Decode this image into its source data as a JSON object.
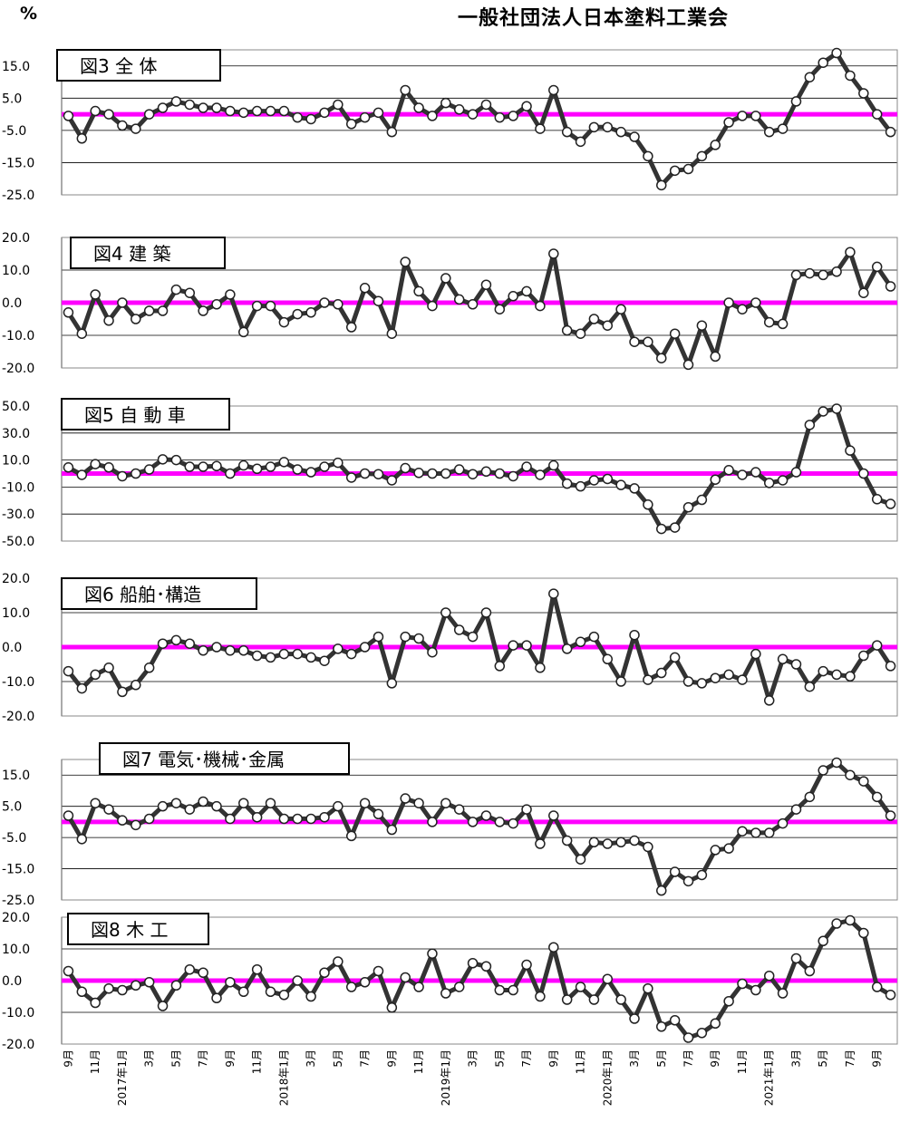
{
  "header": {
    "unit": "%",
    "org": "一般社団法人日本塗料工業会"
  },
  "x_labels": [
    "9月",
    "",
    "11月",
    "",
    "2017年1月",
    "",
    "3月",
    "",
    "5月",
    "",
    "7月",
    "",
    "9月",
    "",
    "11月",
    "",
    "2018年1月",
    "",
    "3月",
    "",
    "5月",
    "",
    "7月",
    "",
    "9月",
    "",
    "11月",
    "",
    "2019年1月",
    "",
    "3月",
    "",
    "5月",
    "",
    "7月",
    "",
    "9月",
    "",
    "11月",
    "",
    "2020年1月",
    "",
    "3月",
    "",
    "5月",
    "",
    "7月",
    "",
    "9月",
    "",
    "11月",
    "",
    "2021年1月",
    "",
    "3月",
    "",
    "5月",
    "",
    "7月",
    "",
    "9月",
    ""
  ],
  "chart_data": [
    {
      "type": "line",
      "title": "図3 全 体",
      "ylim": [
        -25,
        20
      ],
      "yticks": [
        "15.0",
        "5.0",
        "-5.0",
        "-15.0",
        "-25.0"
      ],
      "ytick_values": [
        15,
        5,
        -5,
        -15,
        -25
      ],
      "values": [
        -0.5,
        -7.5,
        1,
        0,
        -3.5,
        -4.5,
        0,
        2,
        4,
        3,
        2,
        2,
        1,
        0.5,
        1,
        1,
        1,
        -1,
        -1.5,
        0.5,
        3,
        -3,
        -1,
        0.5,
        -5.5,
        7.5,
        2,
        -0.5,
        3.5,
        1.5,
        0,
        3,
        -1,
        -0.5,
        2.5,
        -4.5,
        7.5,
        -5.5,
        -8.5,
        -4,
        -4,
        -5.5,
        -7,
        -13,
        -22,
        -17.5,
        -17,
        -13,
        -9.5,
        -2.5,
        -0.5,
        -0.5,
        -5.5,
        -4.5,
        4,
        11.5,
        16,
        19,
        12,
        6.5,
        0,
        -5.5
      ]
    },
    {
      "type": "line",
      "title": "図4 建 築",
      "ylim": [
        -20,
        20
      ],
      "yticks": [
        "20.0",
        "10.0",
        "0.0",
        "-10.0",
        "-20.0"
      ],
      "ytick_values": [
        20,
        10,
        0,
        -10,
        -20
      ],
      "values": [
        -3,
        -9.5,
        2.5,
        -5.5,
        0,
        -5,
        -2.5,
        -2.5,
        4,
        3,
        -2.5,
        -0.5,
        2.5,
        -9,
        -1,
        -1,
        -6,
        -3.5,
        -3,
        0,
        -0.5,
        -7.5,
        4.5,
        0.5,
        -9.5,
        12.5,
        3.5,
        -1,
        7.5,
        1,
        -0.5,
        5.5,
        -2,
        2,
        3.5,
        -1,
        15,
        -8.5,
        -9.5,
        -5,
        -7,
        -2,
        -12,
        -12,
        -17,
        -9.5,
        -19,
        -7,
        -16.5,
        0,
        -2,
        0,
        -6,
        -6.5,
        8.5,
        9,
        8.5,
        9.5,
        15.5,
        3,
        11,
        5
      ]
    },
    {
      "type": "line",
      "title": "図5 自 動 車",
      "ylim": [
        -50,
        50
      ],
      "yticks": [
        "50.0",
        "30.0",
        "10.0",
        "-10.0",
        "-30.0",
        "-50.0"
      ],
      "ytick_values": [
        50,
        30,
        10,
        -10,
        -30,
        -50
      ],
      "values": [
        4.5,
        -1,
        7,
        4.5,
        -2,
        0,
        3,
        10.5,
        10,
        5,
        5,
        5.5,
        0,
        6,
        3.5,
        5,
        8.5,
        3,
        1,
        5,
        8,
        -3,
        0,
        -0.5,
        -5,
        4,
        0.5,
        0,
        0,
        3,
        -0.5,
        1.5,
        0,
        -2,
        5,
        -1,
        6,
        -7.5,
        -9.5,
        -5,
        -4,
        -8.5,
        -11,
        -23,
        -41,
        -40,
        -25,
        -19.5,
        -4.5,
        2.5,
        -1,
        1,
        -7,
        -5,
        1,
        36,
        46,
        48,
        17,
        0,
        -19,
        -22.5
      ]
    },
    {
      "type": "line",
      "title": "図6 船舶･構造",
      "ylim": [
        -20,
        20
      ],
      "yticks": [
        "20.0",
        "10.0",
        "0.0",
        "-10.0",
        "-20.0"
      ],
      "ytick_values": [
        20,
        10,
        0,
        -10,
        -20
      ],
      "values": [
        -7,
        -12,
        -8,
        -6,
        -13,
        -11,
        -6,
        1,
        2,
        1,
        -1,
        0,
        -1,
        -1,
        -2.5,
        -3,
        -2,
        -2,
        -3,
        -4,
        -0.5,
        -2,
        0,
        3,
        -10.5,
        3,
        2.5,
        -1.5,
        10,
        5,
        3,
        10,
        -5.5,
        0.5,
        0.5,
        -6,
        15.5,
        -0.5,
        1.5,
        3,
        -3.5,
        -10,
        3.5,
        -9.5,
        -7.5,
        -3,
        -10,
        -10.5,
        -9,
        -8,
        -9.5,
        -2,
        -15.5,
        -3.5,
        -5,
        -11.5,
        -7,
        -8,
        -8.5,
        -2.5,
        0.5,
        -5.5
      ]
    },
    {
      "type": "line",
      "title": "図7 電気･機械･金属",
      "ylim": [
        -25,
        20
      ],
      "yticks": [
        "15.0",
        "5.0",
        "-5.0",
        "-15.0",
        "-25.0"
      ],
      "ytick_values": [
        15,
        5,
        -5,
        -15,
        -25
      ],
      "values": [
        2,
        -5.5,
        6,
        4,
        0.5,
        -1,
        1,
        5,
        6,
        4,
        6.5,
        5,
        1,
        6,
        1.5,
        6,
        1,
        1,
        1,
        1.5,
        5,
        -4.5,
        6,
        2.5,
        -2.5,
        7.5,
        6,
        0,
        6,
        4,
        0,
        2,
        0,
        -0.5,
        4,
        -7,
        2,
        -6,
        -12,
        -6.5,
        -7,
        -6.5,
        -6,
        -8,
        -22,
        -16,
        -19,
        -17,
        -9,
        -8.5,
        -3,
        -3.5,
        -3.5,
        -0.5,
        4,
        8,
        16.5,
        19,
        15,
        13,
        8,
        2
      ]
    },
    {
      "type": "line",
      "title": "図8 木 工",
      "ylim": [
        -20,
        20
      ],
      "yticks": [
        "20.0",
        "10.0",
        "0.0",
        "-10.0",
        "-20.0"
      ],
      "ytick_values": [
        20,
        10,
        0,
        -10,
        -20
      ],
      "values": [
        3,
        -3.5,
        -7,
        -2.5,
        -3,
        -1.5,
        -0.5,
        -8,
        -1.5,
        3.5,
        2.5,
        -5.5,
        -0.5,
        -3.5,
        3.5,
        -3.5,
        -4.5,
        0,
        -5,
        2.5,
        6,
        -2,
        -0.5,
        3,
        -8.5,
        1,
        -2,
        8.5,
        -4,
        -2,
        5.5,
        4.5,
        -3,
        -3,
        5,
        -5,
        10.5,
        -6,
        -2,
        -6,
        0.5,
        -6,
        -12,
        -2.5,
        -14.5,
        -12.5,
        -18,
        -16.5,
        -13.5,
        -6.5,
        -1,
        -3,
        1.5,
        -4,
        7,
        3,
        12.5,
        18,
        19,
        15,
        -2,
        -4.5
      ]
    }
  ],
  "colors": {
    "baseline": "#FF00FF",
    "line": "#333333",
    "marker_fill": "#ffffff",
    "grid": "#000000"
  }
}
